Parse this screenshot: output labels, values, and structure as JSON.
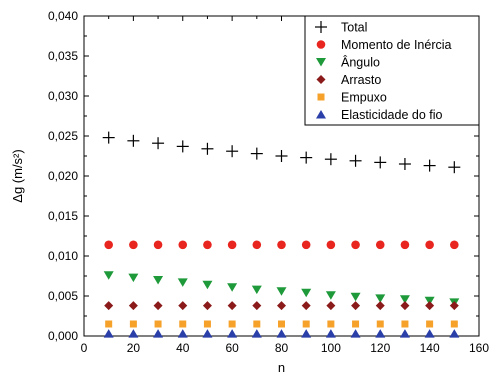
{
  "chart_data": {
    "type": "scatter",
    "xlabel": "n",
    "ylabel": "Δg (m/s²)",
    "xlim": [
      0,
      160
    ],
    "ylim": [
      0,
      0.04
    ],
    "x_ticks": [
      0,
      20,
      40,
      60,
      80,
      100,
      120,
      140,
      160
    ],
    "x_tick_labels": [
      "0",
      "20",
      "40",
      "60",
      "80",
      "100",
      "120",
      "140",
      "160"
    ],
    "y_ticks": [
      0,
      0.005,
      0.01,
      0.015,
      0.02,
      0.025,
      0.03,
      0.035,
      0.04
    ],
    "y_tick_labels": [
      "0,000",
      "0,005",
      "0,010",
      "0,015",
      "0,020",
      "0,025",
      "0,030",
      "0,035",
      "0,040"
    ],
    "grid": false,
    "legend_position": "top-right",
    "x": [
      10,
      20,
      30,
      40,
      50,
      60,
      70,
      80,
      90,
      100,
      110,
      120,
      130,
      140,
      150
    ],
    "series": [
      {
        "name": "Total",
        "marker": "plus",
        "color": "#000000",
        "values": [
          0.0248,
          0.0244,
          0.0241,
          0.0237,
          0.0234,
          0.0231,
          0.0228,
          0.0225,
          0.0223,
          0.0221,
          0.0219,
          0.0217,
          0.0215,
          0.0213,
          0.0211
        ]
      },
      {
        "name": "Momento de Inércia",
        "marker": "circle",
        "color": "#e8251f",
        "values": [
          0.0114,
          0.0114,
          0.0114,
          0.0114,
          0.0114,
          0.0114,
          0.0114,
          0.0114,
          0.0114,
          0.0114,
          0.0114,
          0.0114,
          0.0114,
          0.0114,
          0.0114
        ]
      },
      {
        "name": "Ângulo",
        "marker": "triangle-down",
        "color": "#1f9a3a",
        "values": [
          0.0076,
          0.0073,
          0.007,
          0.0067,
          0.0064,
          0.0061,
          0.0058,
          0.0056,
          0.0054,
          0.0051,
          0.0049,
          0.0047,
          0.0046,
          0.0044,
          0.0042
        ]
      },
      {
        "name": "Arrasto",
        "marker": "diamond",
        "color": "#8b1a1a",
        "values": [
          0.0038,
          0.0038,
          0.0038,
          0.0038,
          0.0038,
          0.0038,
          0.0038,
          0.0038,
          0.0038,
          0.0038,
          0.0038,
          0.0038,
          0.0038,
          0.0038,
          0.0038
        ]
      },
      {
        "name": "Empuxo",
        "marker": "square",
        "color": "#f5a12a",
        "values": [
          0.0015,
          0.0015,
          0.0015,
          0.0015,
          0.0015,
          0.0015,
          0.0015,
          0.0015,
          0.0015,
          0.0015,
          0.0015,
          0.0015,
          0.0015,
          0.0015,
          0.0015
        ]
      },
      {
        "name": "Elasticidade do fio",
        "marker": "triangle-up",
        "color": "#2b3fa8",
        "values": [
          0.0003,
          0.0003,
          0.0003,
          0.0003,
          0.0003,
          0.0003,
          0.0003,
          0.0003,
          0.0003,
          0.0003,
          0.0003,
          0.0003,
          0.0003,
          0.0003,
          0.0003
        ]
      }
    ]
  }
}
